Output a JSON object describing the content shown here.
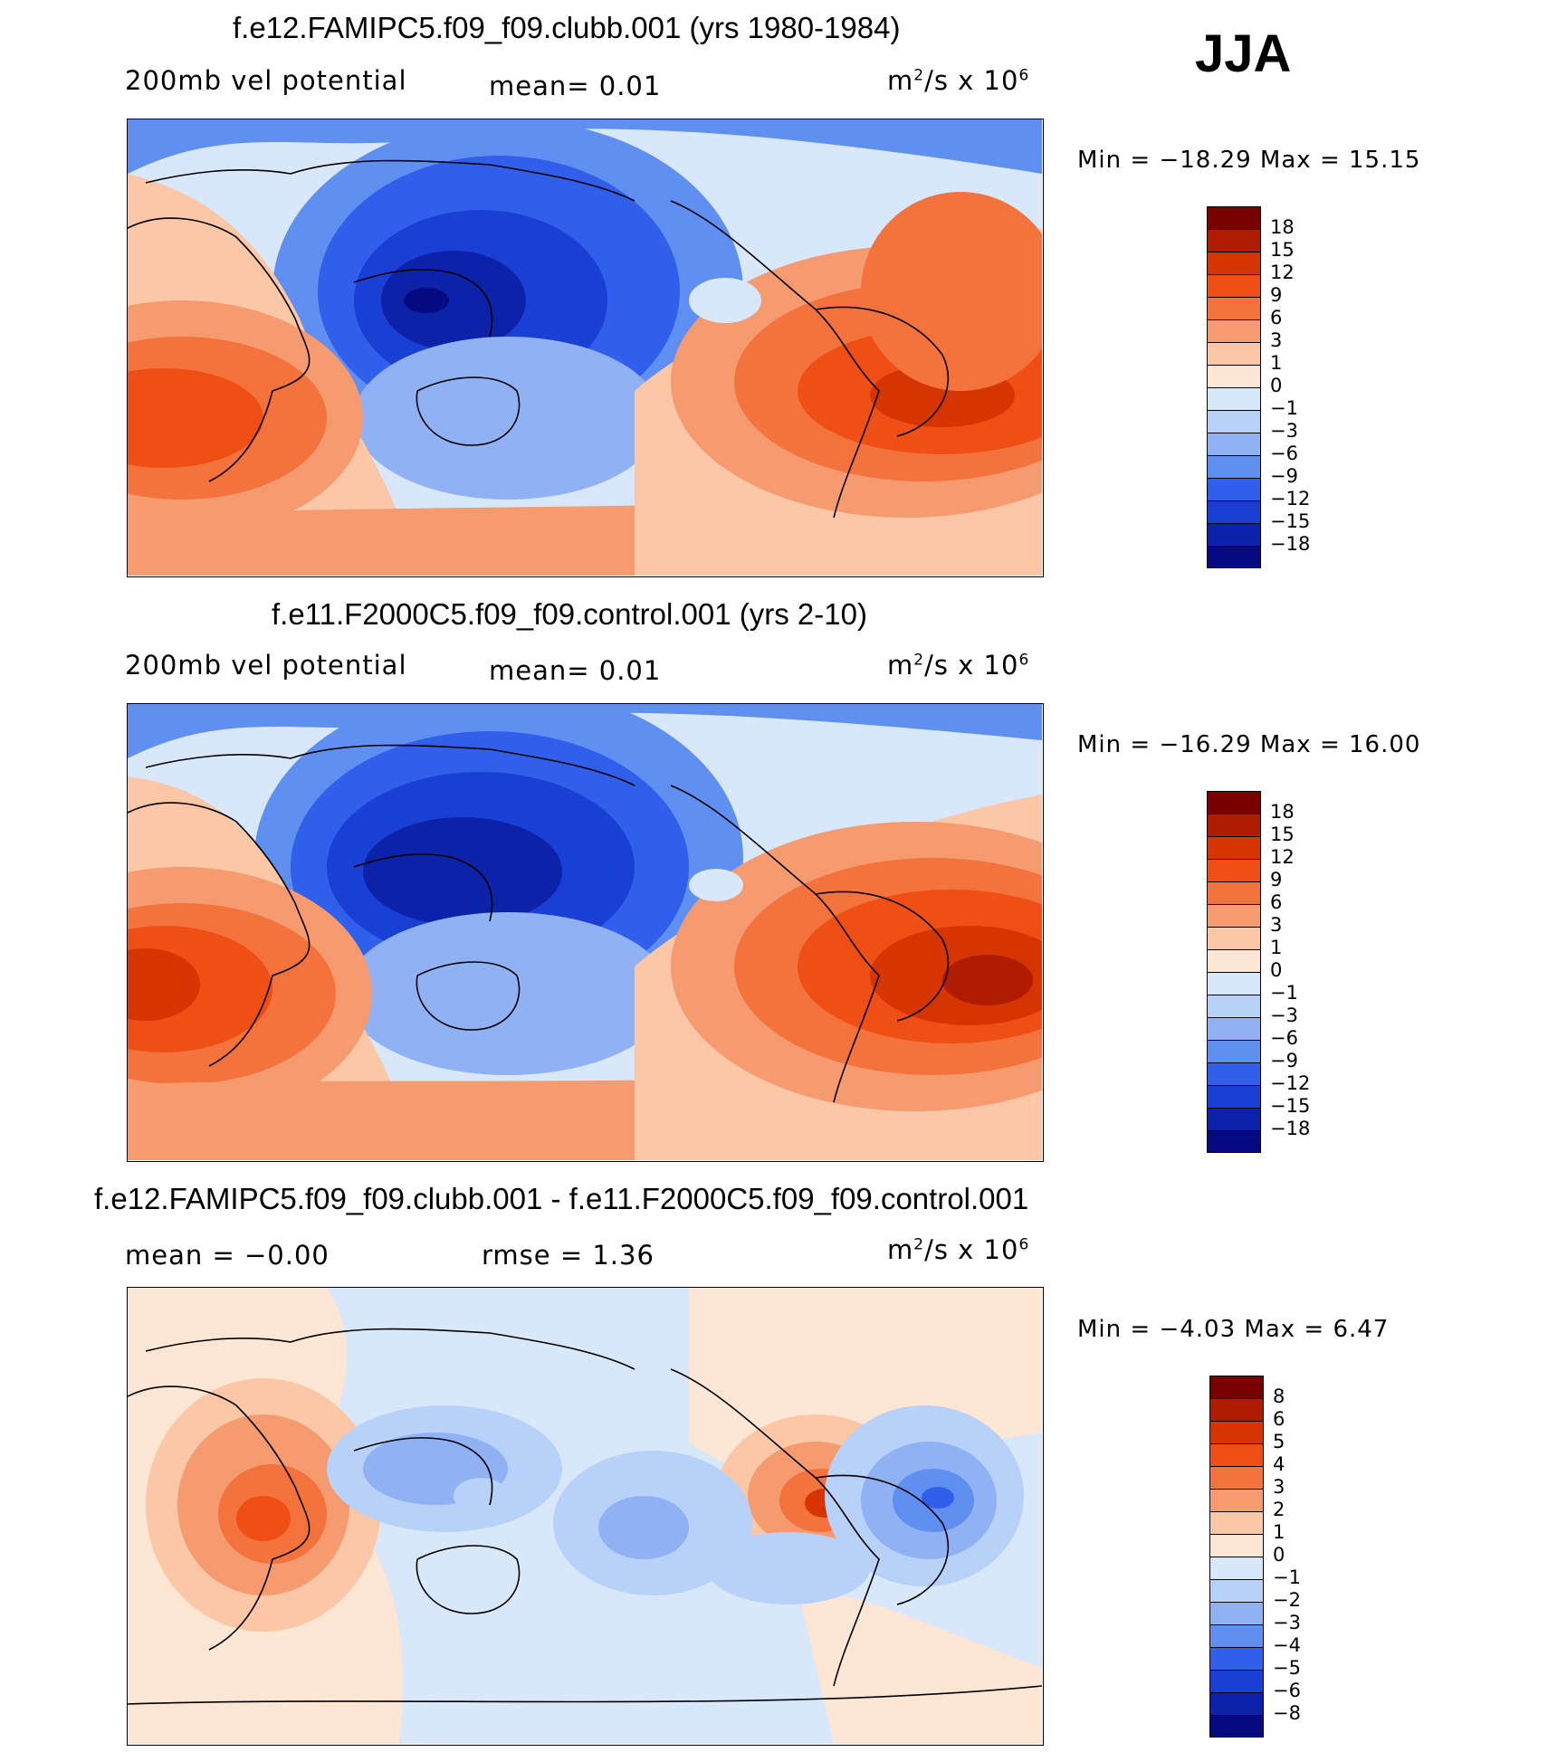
{
  "season": "JJA",
  "panels": [
    {
      "title": "f.e12.FAMIPC5.f09_f09.clubb.001 (yrs 1980-1984)",
      "left_label": "200mb  vel  potential",
      "middle_label": "mean=    0.01",
      "units_base": "m",
      "units_sup1": "2",
      "units_mid": "/s  x  10",
      "units_sup2": "6",
      "minmax": "Min  =  −18.29  Max  =    15.15",
      "levels": [
        "18",
        "15",
        "12",
        "9",
        "6",
        "3",
        "1",
        "0",
        "−1",
        "−3",
        "−6",
        "−9",
        "−12",
        "−15",
        "−18"
      ],
      "colors": [
        "#7a0000",
        "#b01c00",
        "#d63400",
        "#ef4f14",
        "#f4733c",
        "#f69a70",
        "#fbc7a6",
        "#fde6d4",
        "#d8e8fa",
        "#b7d1f8",
        "#90b2f5",
        "#5f8ff0",
        "#3060eb",
        "#1a3fd4",
        "#0c22a8",
        "#050a80"
      ]
    },
    {
      "title": "f.e11.F2000C5.f09_f09.control.001 (yrs 2-10)",
      "left_label": "200mb  vel  potential",
      "middle_label": "mean=    0.01",
      "units_base": "m",
      "units_sup1": "2",
      "units_mid": "/s  x  10",
      "units_sup2": "6",
      "minmax": "Min  =  −16.29  Max  =    16.00",
      "levels": [
        "18",
        "15",
        "12",
        "9",
        "6",
        "3",
        "1",
        "0",
        "−1",
        "−3",
        "−6",
        "−9",
        "−12",
        "−15",
        "−18"
      ],
      "colors": [
        "#7a0000",
        "#b01c00",
        "#d63400",
        "#ef4f14",
        "#f4733c",
        "#f69a70",
        "#fbc7a6",
        "#fde6d4",
        "#d8e8fa",
        "#b7d1f8",
        "#90b2f5",
        "#5f8ff0",
        "#3060eb",
        "#1a3fd4",
        "#0c22a8",
        "#050a80"
      ]
    },
    {
      "title": "f.e12.FAMIPC5.f09_f09.clubb.001 - f.e11.F2000C5.f09_f09.control.001",
      "left_label": "mean  =    −0.00",
      "middle_label": "rmse  =      1.36",
      "units_base": "m",
      "units_sup1": "2",
      "units_mid": "/s  x  10",
      "units_sup2": "6",
      "minmax": "Min  =      −4.03  Max  =      6.47",
      "levels": [
        "8",
        "6",
        "5",
        "4",
        "3",
        "2",
        "1",
        "0",
        "−1",
        "−2",
        "−3",
        "−4",
        "−5",
        "−6",
        "−8"
      ],
      "colors": [
        "#7a0000",
        "#b01c00",
        "#d63400",
        "#ef4f14",
        "#f4733c",
        "#f69a70",
        "#fbc7a6",
        "#fde6d4",
        "#d8e8fa",
        "#b7d1f8",
        "#90b2f5",
        "#5f8ff0",
        "#3060eb",
        "#1a3fd4",
        "#0c22a8",
        "#050a80"
      ]
    }
  ]
}
